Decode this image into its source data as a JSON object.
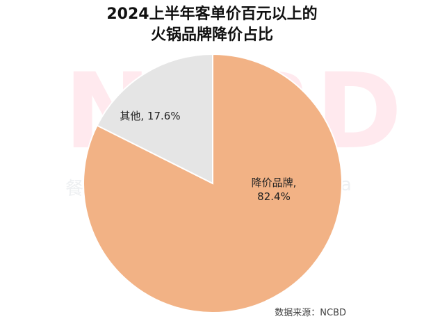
{
  "title_lines": [
    "2024上半年客单价百元以上的",
    "火锅品牌降价占比"
  ],
  "watermark": {
    "logo": "NCBD",
    "left_text": "餐",
    "right_text": "a"
  },
  "source": "数据来源：NCBD",
  "colors": {
    "slice_main": "#f2b285",
    "slice_other": "#e5e5e5",
    "edge": "#ffffff"
  },
  "chart_data": {
    "type": "pie",
    "title": "2024上半年客单价百元以上的火锅品牌降价占比",
    "slices": [
      {
        "label": "降价品牌",
        "value": 82.4,
        "label_lines": [
          "降价品牌,",
          "82.4%"
        ],
        "color": "#f2b285"
      },
      {
        "label": "其他",
        "value": 17.6,
        "label_lines": [
          "其他, 17.6%"
        ],
        "color": "#e5e5e5"
      }
    ],
    "start_angle": "12 o'clock",
    "direction": "clockwise"
  }
}
